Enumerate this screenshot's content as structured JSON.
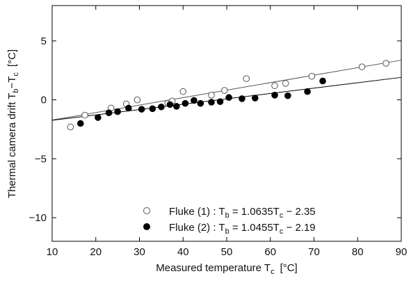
{
  "chart_data": {
    "type": "scatter",
    "xlabel": "Measured temperature T",
    "xlabel_sub": "c",
    "xlabel_unit": "[°C]",
    "ylabel": "Thermal camera drift T",
    "ylabel_sub1": "b",
    "ylabel_mid": "−T",
    "ylabel_sub2": "c",
    "ylabel_unit": "[°C]",
    "xlim": [
      10,
      90
    ],
    "ylim": [
      -12,
      8
    ],
    "xticks": [
      10,
      20,
      30,
      40,
      50,
      60,
      70,
      80,
      90
    ],
    "yticks": [
      -10,
      -5,
      0,
      5
    ],
    "grid": false,
    "legend_position": "bottom-center",
    "series": [
      {
        "name": "Fluke (1) : T_b = 1.0635T_c − 2.35",
        "legend": {
          "prefix": "Fluke (1) : T",
          "sub": "b",
          "suffix": " = 1.0635T",
          "sub2": "c",
          "tail": " − 2.35"
        },
        "marker": "open-circle",
        "color": "#555555",
        "fit": {
          "slope": 0.0635,
          "intercept": -2.35
        },
        "points": [
          [
            14.2,
            -2.3
          ],
          [
            17.5,
            -1.3
          ],
          [
            23.5,
            -0.7
          ],
          [
            27.0,
            -0.35
          ],
          [
            29.5,
            0.0
          ],
          [
            36.5,
            -0.3
          ],
          [
            37.5,
            -0.1
          ],
          [
            40.0,
            0.7
          ],
          [
            46.5,
            0.4
          ],
          [
            49.5,
            0.8
          ],
          [
            54.5,
            1.8
          ],
          [
            61.0,
            1.2
          ],
          [
            63.5,
            1.4
          ],
          [
            69.5,
            2.0
          ],
          [
            81.0,
            2.8
          ],
          [
            86.5,
            3.1
          ]
        ]
      },
      {
        "name": "Fluke (2) : T_b = 1.0455T_c − 2.19",
        "legend": {
          "prefix": "Fluke (2) : T",
          "sub": "b",
          "suffix": " = 1.0455T",
          "sub2": "c",
          "tail": " − 2.19"
        },
        "marker": "filled-circle",
        "color": "#000000",
        "fit": {
          "slope": 0.0455,
          "intercept": -2.19
        },
        "points": [
          [
            16.5,
            -2.0
          ],
          [
            20.5,
            -1.5
          ],
          [
            23.0,
            -1.1
          ],
          [
            25.0,
            -1.0
          ],
          [
            27.5,
            -0.7
          ],
          [
            30.5,
            -0.8
          ],
          [
            33.0,
            -0.75
          ],
          [
            35.0,
            -0.6
          ],
          [
            37.0,
            -0.4
          ],
          [
            38.5,
            -0.55
          ],
          [
            40.5,
            -0.3
          ],
          [
            42.5,
            -0.05
          ],
          [
            44.0,
            -0.3
          ],
          [
            46.5,
            -0.2
          ],
          [
            48.5,
            -0.15
          ],
          [
            50.5,
            0.2
          ],
          [
            53.5,
            0.1
          ],
          [
            56.5,
            0.15
          ],
          [
            61.0,
            0.4
          ],
          [
            64.0,
            0.35
          ],
          [
            68.5,
            0.7
          ],
          [
            72.0,
            1.6
          ]
        ]
      }
    ]
  }
}
